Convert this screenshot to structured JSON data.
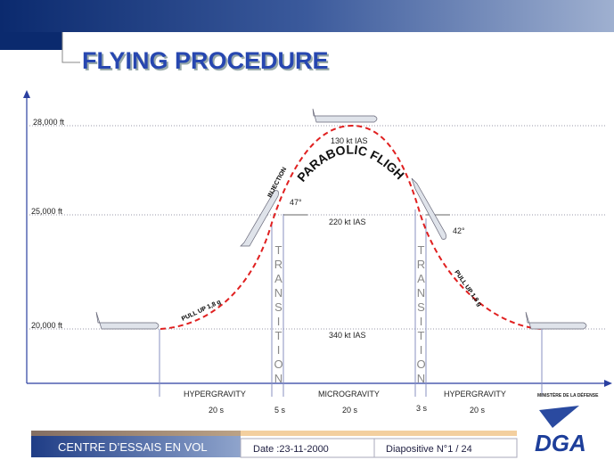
{
  "header": {
    "title": "FLYING PROCEDURE"
  },
  "altitudes": [
    "28,000 ft",
    "25,000 ft",
    "20,000 ft"
  ],
  "speeds": [
    "130 kt IAS",
    "220 kt IAS",
    "340 kt IAS"
  ],
  "annotations": {
    "parabolic": "PARABOLIC FLIGHT",
    "injection": "INJECTION",
    "angle_up": "47°",
    "angle_down": "42°",
    "pull_up_left": "PULL UP 1,8 g",
    "pull_up_right": "PULL UP 1,8 g",
    "transition_left": "TRANSITION",
    "transition_right": "TRANSITION"
  },
  "phases": [
    "HYPERGRAVITY",
    "MICROGRAVITY",
    "HYPERGRAVITY"
  ],
  "durations": [
    "20 s",
    "5 s",
    "20 s",
    "3 s",
    "20 s"
  ],
  "footer": {
    "center": "CENTRE D’ESSAIS EN VOL",
    "date": "Date :23-11-2000",
    "slide": "Diapositive N°1 / 24",
    "ministry": "MINISTÈRE DE LA DÉFENSE",
    "logo": "DGA"
  }
}
